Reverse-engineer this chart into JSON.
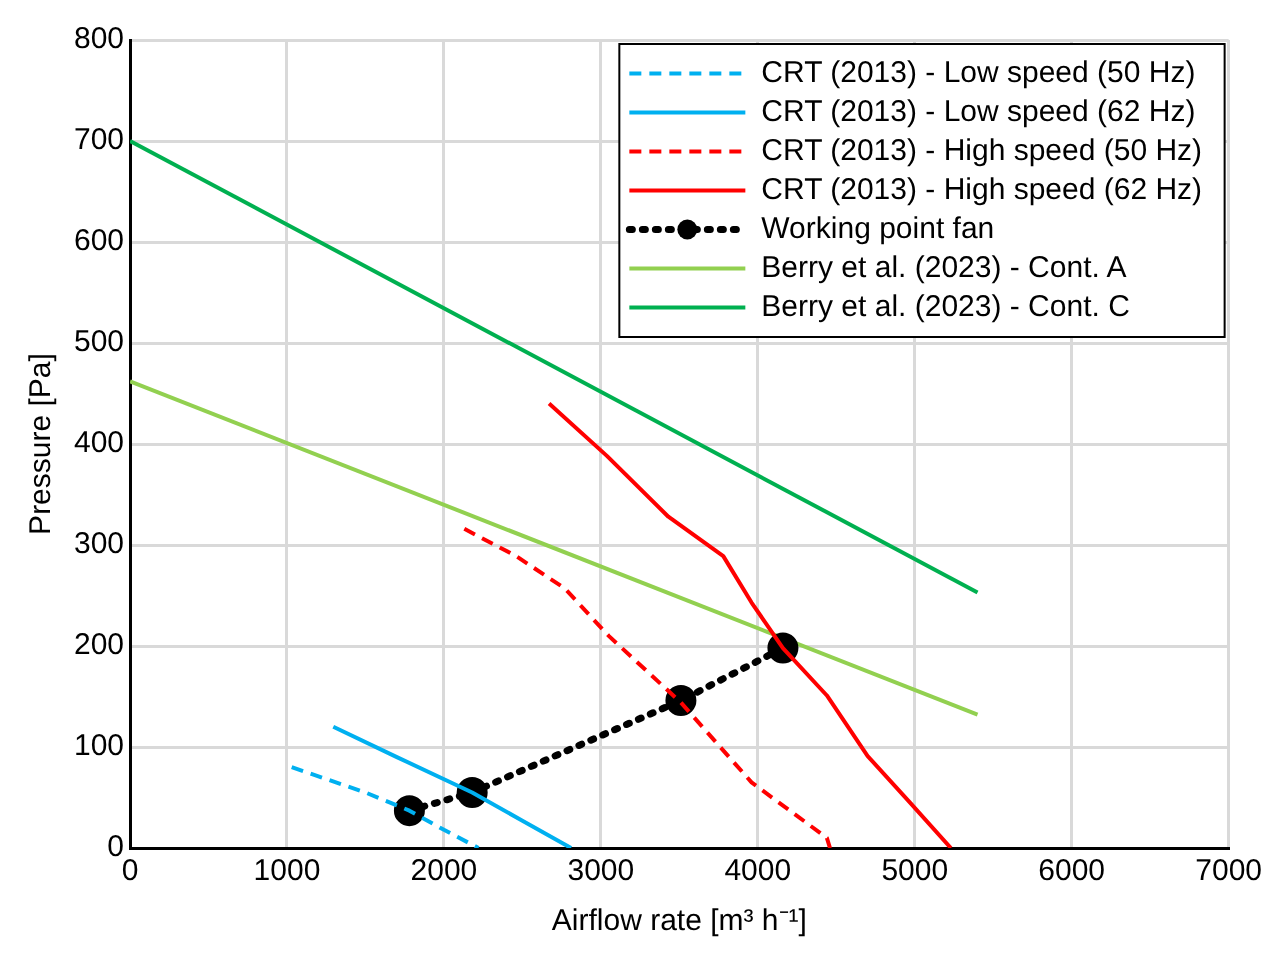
{
  "chart_data": {
    "type": "line",
    "xlabel": "Airflow rate [m³ h⁻¹]",
    "ylabel": "Pressure [Pa]",
    "xlim": [
      0,
      7000
    ],
    "xticks": [
      0,
      1000,
      2000,
      3000,
      4000,
      5000,
      6000,
      7000
    ],
    "ylim": [
      0,
      800
    ],
    "yticks": [
      0,
      100,
      200,
      300,
      400,
      500,
      600,
      700,
      800
    ],
    "grid": true,
    "legend": "top right",
    "marker": "none",
    "series": [
      {
        "name": "CRT (2013) - Low speed (50 Hz)",
        "color": "#00b0f0",
        "line_style": "dashed",
        "x": [
          1030,
          1500,
          1780,
          2000,
          2220
        ],
        "values": [
          80,
          55,
          37,
          18,
          0
        ]
      },
      {
        "name": "CRT (2013) - Low speed (62 Hz)",
        "color": "#00b0f0",
        "line_style": "solid",
        "x": [
          1295,
          1700,
          2180,
          2500,
          2810
        ],
        "values": [
          120,
          90,
          55,
          27,
          0
        ]
      },
      {
        "name": "CRT (2013) - High speed (50 Hz)",
        "color": "#ff0000",
        "line_style": "dashed",
        "x": [
          2130,
          2460,
          2770,
          3050,
          3510,
          3960,
          4440,
          4460
        ],
        "values": [
          316,
          289,
          257,
          210,
          144,
          65,
          10,
          0
        ]
      },
      {
        "name": "CRT (2013) - High speed (62 Hz)",
        "color": "#ff0000",
        "line_style": "solid",
        "x": [
          2670,
          3040,
          3430,
          3780,
          3960,
          4160,
          4440,
          4700,
          4970,
          5230
        ],
        "values": [
          440,
          388,
          328,
          289,
          243,
          198,
          151,
          91,
          45,
          0
        ]
      },
      {
        "name": "Working point fan",
        "color": "#000000",
        "line_style": "dotted",
        "marker": "circle",
        "x": [
          1780,
          2180,
          3510,
          4160
        ],
        "values": [
          37,
          55,
          146,
          198
        ]
      },
      {
        "name": "Berry et al. (2023) - Cont. A",
        "color": "#92d050",
        "line_style": "solid",
        "x": [
          0,
          5400
        ],
        "values": [
          462,
          132
        ]
      },
      {
        "name": "Berry et al. (2023) - Cont. C",
        "color": "#00b050",
        "line_style": "solid",
        "x": [
          0,
          5400
        ],
        "values": [
          700,
          253
        ]
      }
    ]
  }
}
